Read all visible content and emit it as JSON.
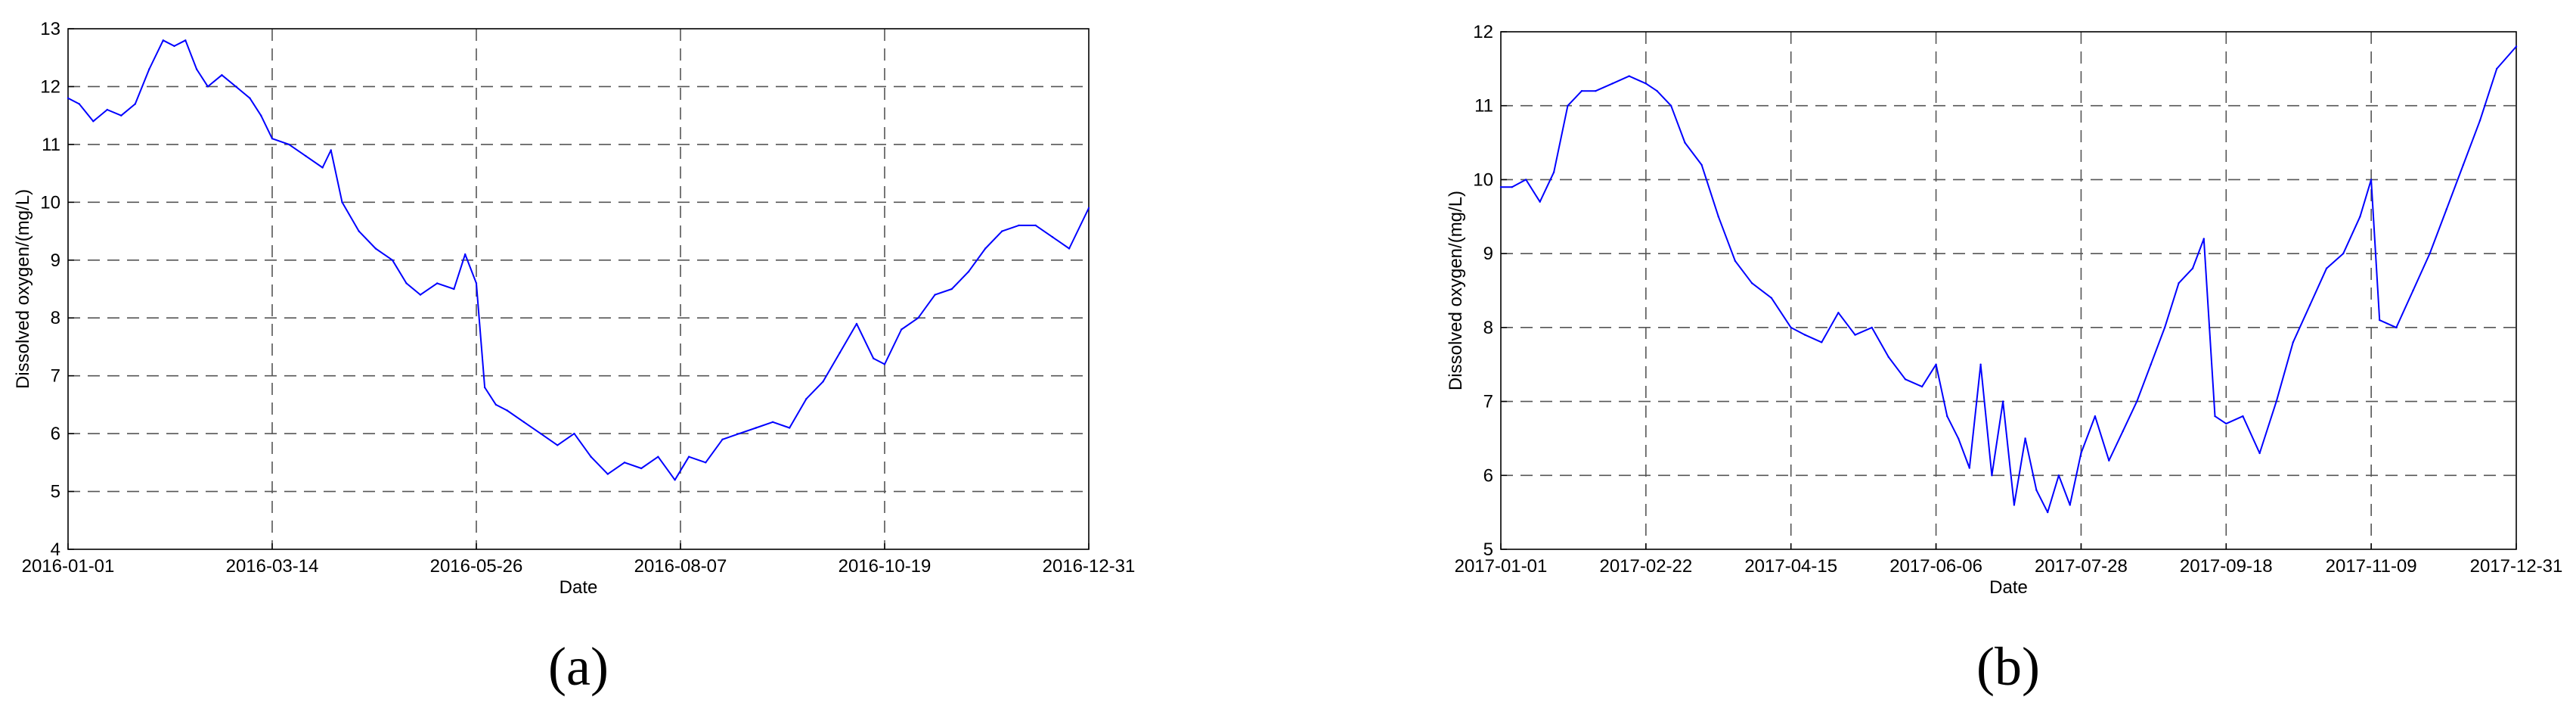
{
  "chart_data": [
    {
      "type": "line",
      "panel_label": "(a)",
      "xlabel": "Date",
      "ylabel": "Dissolved oxygen/(mg/L)",
      "x_ticks": [
        "2016-01-01",
        "2016-03-14",
        "2016-05-26",
        "2016-08-07",
        "2016-10-19",
        "2016-12-31"
      ],
      "y_ticks": [
        4,
        5,
        6,
        7,
        8,
        9,
        10,
        11,
        12,
        13
      ],
      "xlim": [
        "2016-01-01",
        "2016-12-31"
      ],
      "ylim": [
        4,
        13
      ],
      "grid": true,
      "line_color": "#0000ff",
      "series": [
        {
          "x": [
            "2016-01-01",
            "2016-01-05",
            "2016-01-10",
            "2016-01-15",
            "2016-01-20",
            "2016-01-25",
            "2016-01-30",
            "2016-02-04",
            "2016-02-08",
            "2016-02-12",
            "2016-02-16",
            "2016-02-20",
            "2016-02-25",
            "2016-03-01",
            "2016-03-06",
            "2016-03-10",
            "2016-03-14",
            "2016-03-20",
            "2016-03-26",
            "2016-04-01",
            "2016-04-04",
            "2016-04-08",
            "2016-04-14",
            "2016-04-20",
            "2016-04-26",
            "2016-05-01",
            "2016-05-06",
            "2016-05-12",
            "2016-05-18",
            "2016-05-22",
            "2016-05-26",
            "2016-05-29",
            "2016-06-02",
            "2016-06-06",
            "2016-06-12",
            "2016-06-18",
            "2016-06-24",
            "2016-06-30",
            "2016-07-06",
            "2016-07-12",
            "2016-07-18",
            "2016-07-24",
            "2016-07-30",
            "2016-08-05",
            "2016-08-10",
            "2016-08-16",
            "2016-08-22",
            "2016-08-28",
            "2016-09-03",
            "2016-09-09",
            "2016-09-15",
            "2016-09-21",
            "2016-09-27",
            "2016-10-03",
            "2016-10-09",
            "2016-10-15",
            "2016-10-19",
            "2016-10-25",
            "2016-10-31",
            "2016-11-06",
            "2016-11-12",
            "2016-11-18",
            "2016-11-24",
            "2016-11-30",
            "2016-12-06",
            "2016-12-12",
            "2016-12-18",
            "2016-12-24",
            "2016-12-31"
          ],
          "y": [
            11.8,
            11.7,
            11.4,
            11.6,
            11.5,
            11.7,
            12.3,
            12.8,
            12.7,
            12.8,
            12.3,
            12.0,
            12.2,
            12.0,
            11.8,
            11.5,
            11.1,
            11.0,
            10.8,
            10.6,
            10.9,
            10.0,
            9.5,
            9.2,
            9.0,
            8.6,
            8.4,
            8.6,
            8.5,
            9.1,
            8.6,
            6.8,
            6.5,
            6.4,
            6.2,
            6.0,
            5.8,
            6.0,
            5.6,
            5.3,
            5.5,
            5.4,
            5.6,
            5.2,
            5.6,
            5.5,
            5.9,
            6.0,
            6.1,
            6.2,
            6.1,
            6.6,
            6.9,
            7.4,
            7.9,
            7.3,
            7.2,
            7.8,
            8.0,
            8.4,
            8.5,
            8.8,
            9.2,
            9.5,
            9.6,
            9.6,
            9.4,
            9.2,
            9.9
          ]
        }
      ]
    },
    {
      "type": "line",
      "panel_label": "(b)",
      "xlabel": "Date",
      "ylabel": "Dissolved oxygen/(mg/L)",
      "x_ticks": [
        "2017-01-01",
        "2017-02-22",
        "2017-04-15",
        "2017-06-06",
        "2017-07-28",
        "2017-09-18",
        "2017-11-09",
        "2017-12-31"
      ],
      "y_ticks": [
        5,
        6,
        7,
        8,
        9,
        10,
        11,
        12
      ],
      "xlim": [
        "2017-01-01",
        "2017-12-31"
      ],
      "ylim": [
        5,
        12
      ],
      "grid": true,
      "line_color": "#0000ff",
      "series": [
        {
          "x": [
            "2017-01-01",
            "2017-01-05",
            "2017-01-10",
            "2017-01-15",
            "2017-01-20",
            "2017-01-25",
            "2017-01-30",
            "2017-02-04",
            "2017-02-10",
            "2017-02-16",
            "2017-02-22",
            "2017-02-26",
            "2017-03-03",
            "2017-03-08",
            "2017-03-14",
            "2017-03-20",
            "2017-03-26",
            "2017-04-01",
            "2017-04-08",
            "2017-04-15",
            "2017-04-20",
            "2017-04-26",
            "2017-05-02",
            "2017-05-08",
            "2017-05-14",
            "2017-05-20",
            "2017-05-26",
            "2017-06-01",
            "2017-06-06",
            "2017-06-10",
            "2017-06-14",
            "2017-06-18",
            "2017-06-22",
            "2017-06-26",
            "2017-06-30",
            "2017-07-04",
            "2017-07-08",
            "2017-07-12",
            "2017-07-16",
            "2017-07-20",
            "2017-07-24",
            "2017-07-28",
            "2017-08-02",
            "2017-08-07",
            "2017-08-12",
            "2017-08-17",
            "2017-08-22",
            "2017-08-27",
            "2017-09-01",
            "2017-09-06",
            "2017-09-10",
            "2017-09-14",
            "2017-09-18",
            "2017-09-24",
            "2017-09-30",
            "2017-10-06",
            "2017-10-12",
            "2017-10-18",
            "2017-10-24",
            "2017-10-30",
            "2017-11-05",
            "2017-11-09",
            "2017-11-12",
            "2017-11-18",
            "2017-11-24",
            "2017-11-30",
            "2017-12-06",
            "2017-12-12",
            "2017-12-18",
            "2017-12-24",
            "2017-12-31"
          ],
          "y": [
            9.9,
            9.9,
            10.0,
            9.7,
            10.1,
            11.0,
            11.2,
            11.2,
            11.3,
            11.4,
            11.3,
            11.2,
            11.0,
            10.5,
            10.2,
            9.5,
            8.9,
            8.6,
            8.4,
            8.0,
            7.9,
            7.8,
            8.2,
            7.9,
            8.0,
            7.6,
            7.3,
            7.2,
            7.5,
            6.8,
            6.5,
            6.1,
            7.5,
            6.0,
            7.0,
            5.6,
            6.5,
            5.8,
            5.5,
            6.0,
            5.6,
            6.3,
            6.8,
            6.2,
            6.6,
            7.0,
            7.5,
            8.0,
            8.6,
            8.8,
            9.2,
            6.8,
            6.7,
            6.8,
            6.3,
            7.0,
            7.8,
            8.3,
            8.8,
            9.0,
            9.5,
            10.0,
            8.1,
            8.0,
            8.5,
            9.0,
            9.6,
            10.2,
            10.8,
            11.5,
            11.8
          ]
        }
      ]
    }
  ]
}
